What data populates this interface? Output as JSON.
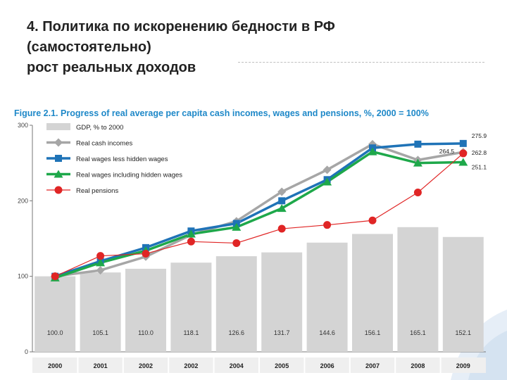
{
  "slide": {
    "title_lines": [
      "4. Политика по искоренению бедности в РФ",
      "(самостоятельно)",
      "рост реальных доходов"
    ]
  },
  "colors": {
    "gdp": "#d4d4d4",
    "cash_incomes": "#a6a6a6",
    "wages_less_hidden": "#1f73b7",
    "wages_incl_hidden": "#1ea84a",
    "pensions": "#e02525",
    "figure_title": "#1e88c8"
  },
  "chart_data": {
    "type": "bar+line",
    "title": "Figure 2.1. Progress of real average per capita cash incomes, wages and pensions, %, 2000 = 100%",
    "xlabel": "",
    "ylabel": "",
    "ylim": [
      0,
      300
    ],
    "yticks": [
      0,
      100,
      200,
      300
    ],
    "categories": [
      "2000",
      "2001",
      "2002",
      "2002",
      "2004",
      "2005",
      "2006",
      "2007",
      "2008",
      "2009"
    ],
    "bars": {
      "name": "GDP, % to 2000",
      "values": [
        100.0,
        105.1,
        110.0,
        118.1,
        126.6,
        131.7,
        144.6,
        156.1,
        165.1,
        152.1
      ],
      "labels": [
        "100.0",
        "105.1",
        "110.0",
        "118.1",
        "126.6",
        "131.7",
        "144.6",
        "156.1",
        "165.1",
        "152.1"
      ]
    },
    "series": [
      {
        "name": "Real cash incomes",
        "marker": "diamond",
        "values": [
          100,
          108,
          126,
          155,
          173,
          212,
          241,
          275,
          254,
          264.5
        ]
      },
      {
        "name": "Real wages less hidden wages",
        "marker": "square",
        "values": [
          100,
          120,
          138,
          160,
          170,
          200,
          228,
          270,
          275,
          275.9
        ]
      },
      {
        "name": "Real wages including hidden wages",
        "marker": "triangle",
        "values": [
          98,
          118,
          134,
          156,
          165,
          190,
          225,
          265,
          250,
          251.1
        ]
      },
      {
        "name": "Real pensions",
        "marker": "circle",
        "values": [
          100,
          127,
          130,
          146,
          144,
          163,
          168,
          174,
          211,
          262.8
        ]
      }
    ],
    "annotations": [
      {
        "series": "Real cash incomes",
        "text": "264.5"
      },
      {
        "series": "Real wages less hidden wages",
        "text": "275.9"
      },
      {
        "series": "Real pensions",
        "text": "262.8"
      },
      {
        "series": "Real wages including hidden wages",
        "text": "251.1"
      }
    ]
  }
}
